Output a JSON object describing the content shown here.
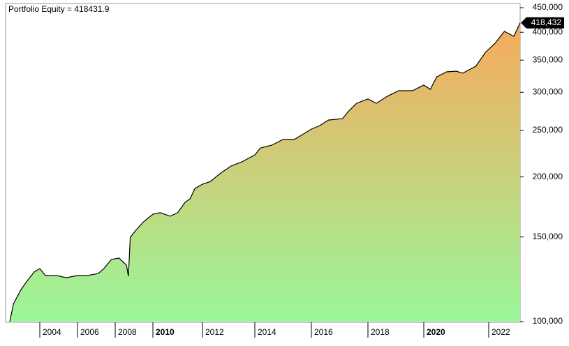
{
  "chart_data": {
    "type": "area",
    "title": "Portfolio Equity = 418431.9",
    "x": [
      2002.4,
      2002.6,
      2003.0,
      2003.4,
      2003.7,
      2004.0,
      2004.3,
      2004.9,
      2005.4,
      2006.0,
      2006.5,
      2007.1,
      2007.4,
      2007.8,
      2008.2,
      2008.6,
      2008.7,
      2008.8,
      2009.1,
      2009.5,
      2010.0,
      2010.3,
      2010.7,
      2011.0,
      2011.3,
      2011.5,
      2011.7,
      2012.0,
      2012.3,
      2012.7,
      2013.1,
      2013.5,
      2014.0,
      2014.2,
      2014.6,
      2015.0,
      2015.4,
      2015.6,
      2016.0,
      2016.3,
      2016.6,
      2017.1,
      2017.3,
      2017.6,
      2018.0,
      2018.3,
      2018.7,
      2019.1,
      2019.6,
      2020.0,
      2020.2,
      2020.4,
      2020.7,
      2021.0,
      2021.2,
      2021.6,
      2021.9,
      2022.2,
      2022.5,
      2022.8,
      2023.0
    ],
    "series": [
      {
        "name": "Portfolio Equity",
        "color": "#000000",
        "values": [
          100000,
          109000,
          116600,
          122600,
          126800,
          128900,
          124700,
          124700,
          123400,
          124700,
          124700,
          125900,
          128900,
          134700,
          135600,
          131000,
          124300,
          149800,
          155000,
          161300,
          167300,
          168500,
          165700,
          168500,
          177100,
          180200,
          189300,
          193200,
          195600,
          203800,
          210800,
          214900,
          222300,
          229800,
          232900,
          239300,
          239300,
          243300,
          251500,
          255800,
          262600,
          264400,
          273400,
          284600,
          290600,
          284600,
          294400,
          302300,
          302300,
          310500,
          304300,
          323000,
          330900,
          332000,
          328800,
          339800,
          363300,
          379400,
          401700,
          392400,
          418431.9
        ]
      }
    ],
    "end_marker": {
      "value": 418431.9,
      "label": "418,432"
    },
    "fill_colors": [
      "#9af79a",
      "#f7aa5c"
    ],
    "ylog": true,
    "ylim": [
      100000,
      450000
    ],
    "yticks": [
      {
        "value": 100000,
        "label": "100,000"
      },
      {
        "value": 150000,
        "label": "150,000"
      },
      {
        "value": 200000,
        "label": "200,000"
      },
      {
        "value": 250000,
        "label": "250,000"
      },
      {
        "value": 300000,
        "label": "300,000"
      },
      {
        "value": 350000,
        "label": "350,000"
      },
      {
        "value": 400000,
        "label": "400,000"
      },
      {
        "value": 450000,
        "label": "450,000"
      }
    ],
    "xlim": [
      2002.4,
      2023.0
    ],
    "xticks": [
      2004,
      2006,
      2008,
      2010,
      2012,
      2014,
      2016,
      2018,
      2020,
      2022
    ]
  }
}
